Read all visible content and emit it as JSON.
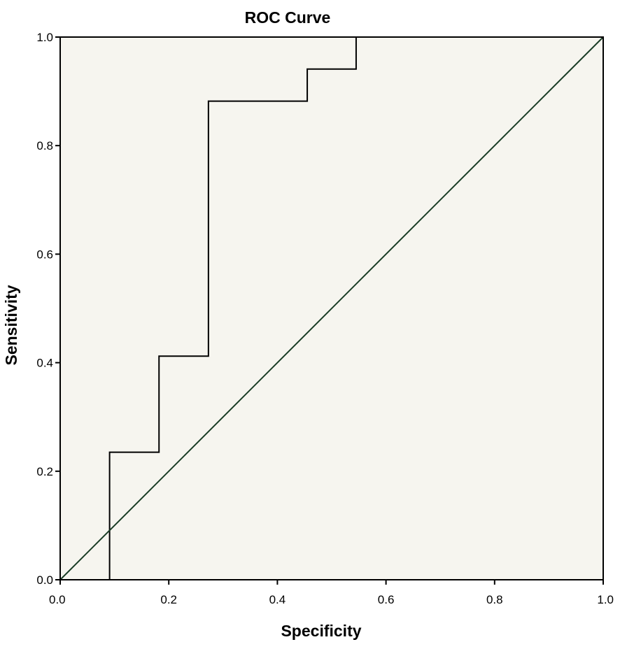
{
  "chart_data": {
    "type": "line",
    "title": "ROC Curve",
    "xlabel": "Specificity",
    "ylabel": "Sensitivity",
    "xlim": [
      0.0,
      1.0
    ],
    "ylim": [
      0.0,
      1.0
    ],
    "xticks": [
      "0.0",
      "0.2",
      "0.4",
      "0.6",
      "0.8",
      "1.0"
    ],
    "yticks": [
      "0.0",
      "0.2",
      "0.4",
      "0.6",
      "0.8",
      "1.0"
    ],
    "grid": false,
    "legend": "none",
    "series": [
      {
        "style": "step",
        "color": "#000000",
        "x": [
          0.091,
          0.091,
          0.182,
          0.182,
          0.273,
          0.273,
          0.455,
          0.455,
          0.545,
          0.545
        ],
        "y": [
          0.0,
          0.235,
          0.235,
          0.412,
          0.412,
          0.882,
          0.882,
          0.941,
          0.941,
          1.0
        ]
      },
      {
        "style": "reference",
        "color": "#1a3d26",
        "x": [
          0.0,
          1.0
        ],
        "y": [
          0.0,
          1.0
        ]
      }
    ],
    "colors": {
      "plot_background": "#f6f5ef",
      "frame": "#000000"
    }
  }
}
